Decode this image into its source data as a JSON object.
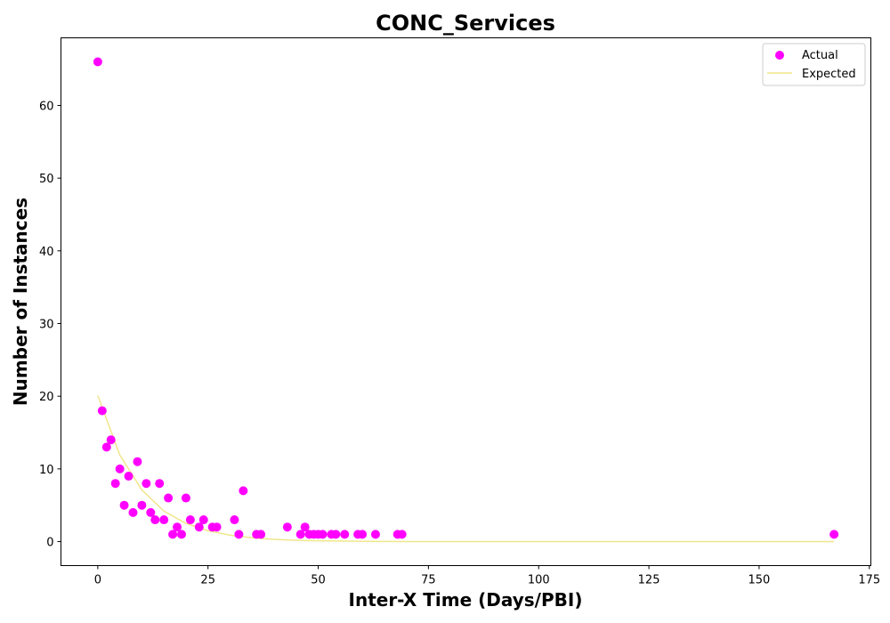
{
  "chart_data": {
    "type": "scatter",
    "title": "CONC_Services",
    "xlabel": "Inter-X Time (Days/PBI)",
    "ylabel": "Number of Instances",
    "xlim": [
      -8.35,
      175.35
    ],
    "ylim": [
      -3.3,
      69.3
    ],
    "xticks": [
      0,
      25,
      50,
      75,
      100,
      125,
      150,
      175
    ],
    "yticks": [
      0,
      10,
      20,
      30,
      40,
      50,
      60
    ],
    "grid": false,
    "legend_position": "top-right",
    "series": [
      {
        "name": "Actual",
        "kind": "scatter",
        "color": "#ff00ff",
        "points": [
          [
            0,
            66
          ],
          [
            1,
            18
          ],
          [
            2,
            13
          ],
          [
            3,
            14
          ],
          [
            4,
            8
          ],
          [
            5,
            10
          ],
          [
            6,
            5
          ],
          [
            7,
            9
          ],
          [
            8,
            4
          ],
          [
            9,
            11
          ],
          [
            10,
            5
          ],
          [
            11,
            8
          ],
          [
            12,
            4
          ],
          [
            13,
            3
          ],
          [
            14,
            8
          ],
          [
            15,
            3
          ],
          [
            16,
            6
          ],
          [
            17,
            1
          ],
          [
            18,
            2
          ],
          [
            19,
            1
          ],
          [
            20,
            6
          ],
          [
            21,
            3
          ],
          [
            23,
            2
          ],
          [
            24,
            3
          ],
          [
            26,
            2
          ],
          [
            27,
            2
          ],
          [
            31,
            3
          ],
          [
            32,
            1
          ],
          [
            33,
            7
          ],
          [
            36,
            1
          ],
          [
            37,
            1
          ],
          [
            43,
            2
          ],
          [
            46,
            1
          ],
          [
            47,
            2
          ],
          [
            48,
            1
          ],
          [
            49,
            1
          ],
          [
            50,
            1
          ],
          [
            51,
            1
          ],
          [
            53,
            1
          ],
          [
            54,
            1
          ],
          [
            56,
            1
          ],
          [
            59,
            1
          ],
          [
            60,
            1
          ],
          [
            63,
            1
          ],
          [
            68,
            1
          ],
          [
            69,
            1
          ],
          [
            167,
            1
          ]
        ]
      },
      {
        "name": "Expected",
        "kind": "line",
        "color": "#f0e68c",
        "points": [
          [
            0,
            20.1
          ],
          [
            5,
            11.9
          ],
          [
            10,
            7.1
          ],
          [
            15,
            4.2
          ],
          [
            20,
            2.5
          ],
          [
            25,
            1.49
          ],
          [
            30,
            0.88
          ],
          [
            35,
            0.52
          ],
          [
            40,
            0.31
          ],
          [
            45,
            0.18
          ],
          [
            50,
            0.11
          ],
          [
            60,
            0.04
          ],
          [
            70,
            0.01
          ],
          [
            80,
            0.0
          ],
          [
            100,
            0.0
          ],
          [
            125,
            0.0
          ],
          [
            150,
            0.0
          ],
          [
            167,
            0.0
          ]
        ]
      }
    ]
  }
}
